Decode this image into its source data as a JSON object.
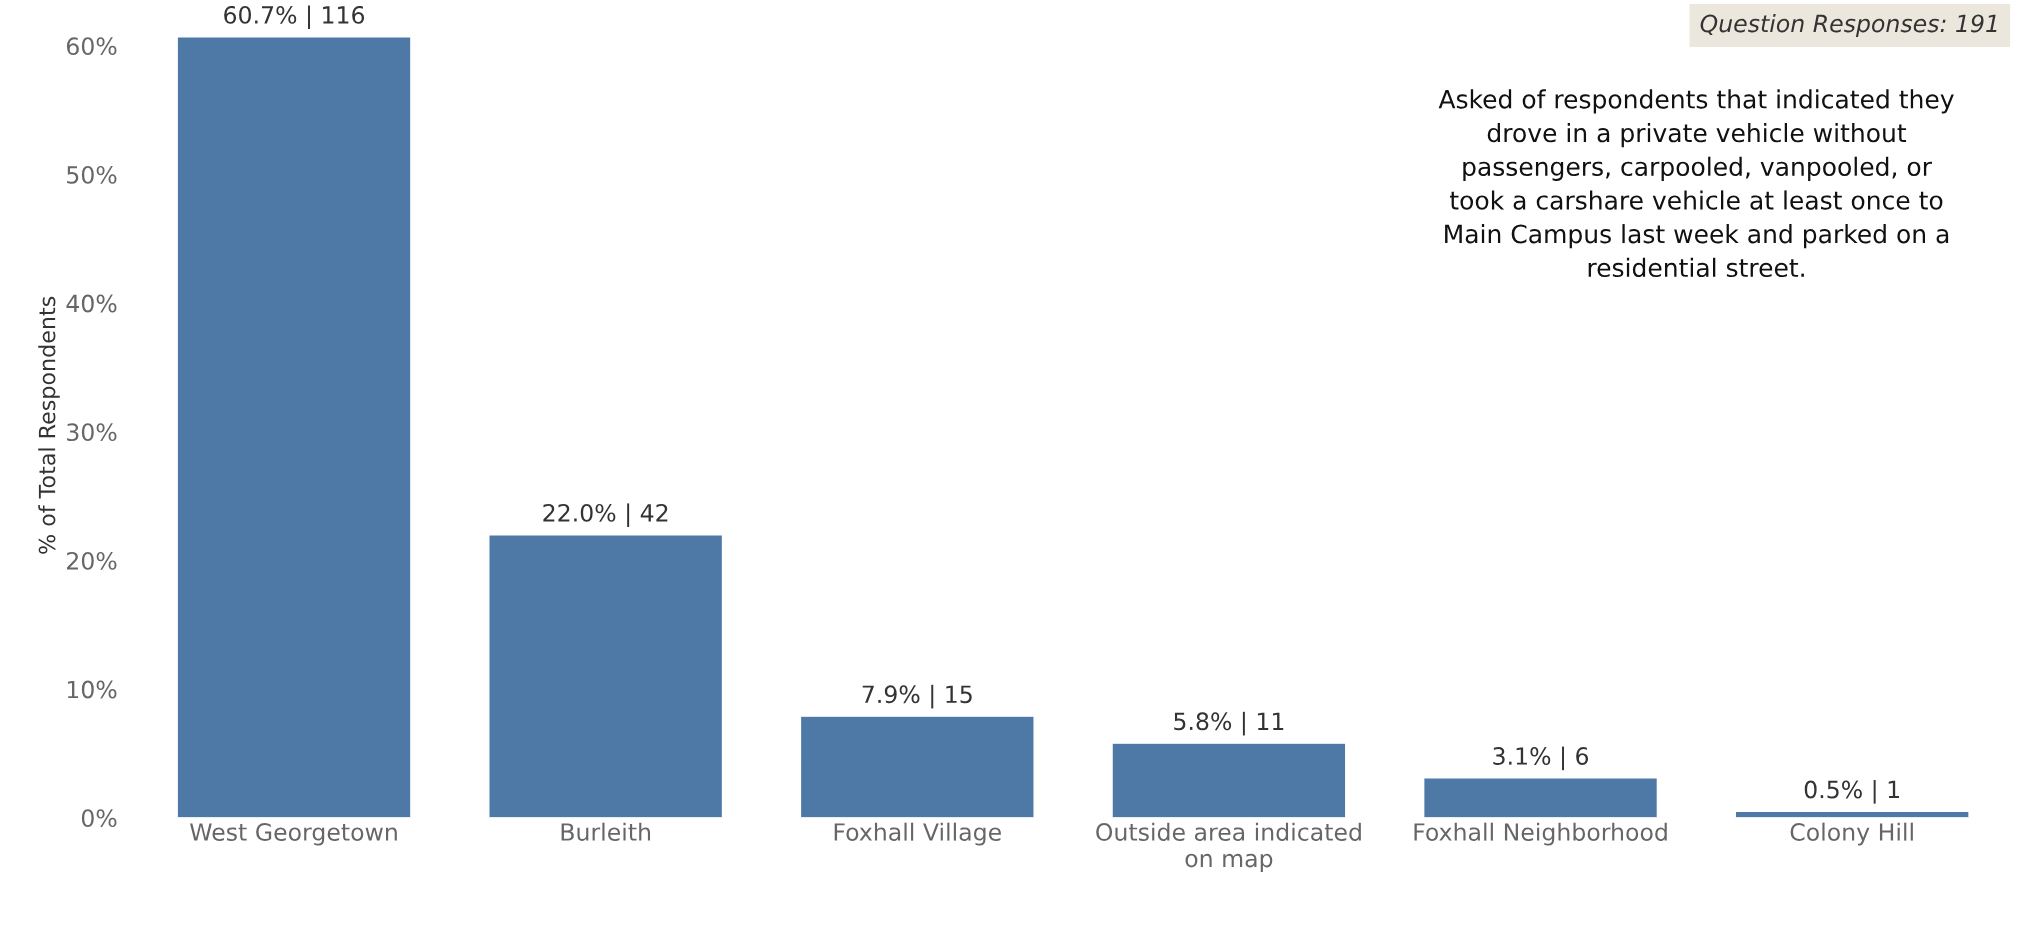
{
  "chart_data": {
    "type": "bar",
    "ylabel": "% of Total Respondents",
    "categories": [
      "West Georgetown",
      "Burleith",
      "Foxhall Village",
      "Outside area indicated on map",
      "Foxhall Neighborhood",
      "Colony Hill"
    ],
    "values": [
      60.7,
      22.0,
      7.9,
      5.8,
      3.1,
      0.5
    ],
    "value_labels": [
      "60.7% | 116",
      "22.0% | 42",
      "7.9% | 15",
      "5.8% | 11",
      "3.1% | 6",
      "0.5% | 1"
    ],
    "color": "#4e79a7",
    "ylim": [
      0,
      61
    ],
    "yticks": [
      {
        "value": 0,
        "label": "0%"
      },
      {
        "value": 10,
        "label": "10%"
      },
      {
        "value": 20,
        "label": "20%"
      },
      {
        "value": 30,
        "label": "30%"
      },
      {
        "value": 40,
        "label": "40%"
      },
      {
        "value": 50,
        "label": "50%"
      },
      {
        "value": 60,
        "label": "60%"
      }
    ],
    "grid": false,
    "legend": false,
    "annotations": [
      "Question Responses: 191",
      "Asked of respondents that indicated they drove in a private vehicle without passengers, carpooled, vanpooled, or took a carshare vehicle at least once to Main Campus last week and parked on a residential street."
    ]
  }
}
